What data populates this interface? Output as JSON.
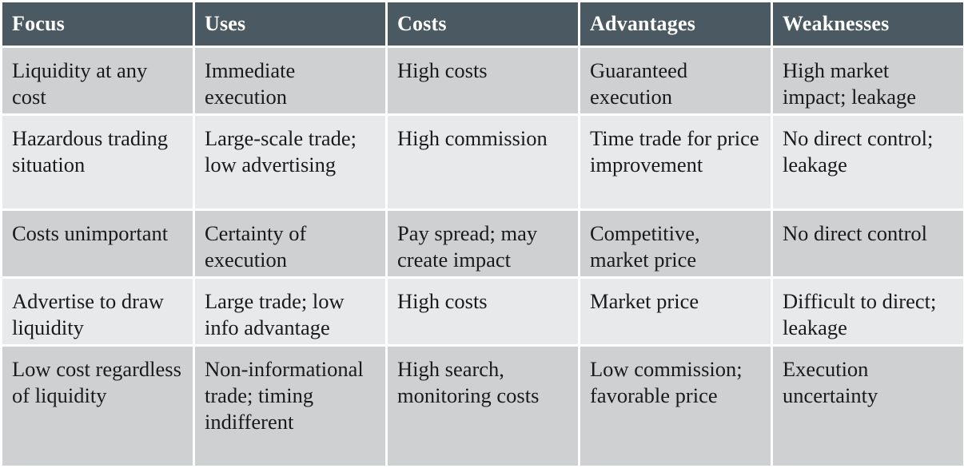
{
  "table": {
    "headers": [
      "Focus",
      "Uses",
      "Costs",
      "Advantages",
      "Weaknesses"
    ],
    "rows": [
      [
        "Liquidity at any cost",
        "Immediate execution",
        "High costs",
        "Guaranteed execution",
        "High market impact; leakage"
      ],
      [
        "Hazardous trading situation",
        "Large-scale trade; low advertising",
        "High commission",
        "Time trade for price improvement",
        "No direct control; leakage"
      ],
      [
        "Costs unimportant",
        "Certainty of execution",
        "Pay spread; may create impact",
        "Competitive, market price",
        "No direct control"
      ],
      [
        "Advertise to draw liquidity",
        "Large trade; low info advantage",
        "High costs",
        "Market price",
        "Difficult to direct; leakage"
      ],
      [
        "Low cost regardless of liquidity",
        "Non-informational trade; timing indifferent",
        "High search, monitoring costs",
        "Low commission; favorable price",
        "Execution uncertainty"
      ]
    ]
  },
  "colors": {
    "header_bg": "#4b5a62",
    "header_text": "#ffffff",
    "row_dark": "#cfd0d2",
    "row_light": "#e8e9ea"
  }
}
